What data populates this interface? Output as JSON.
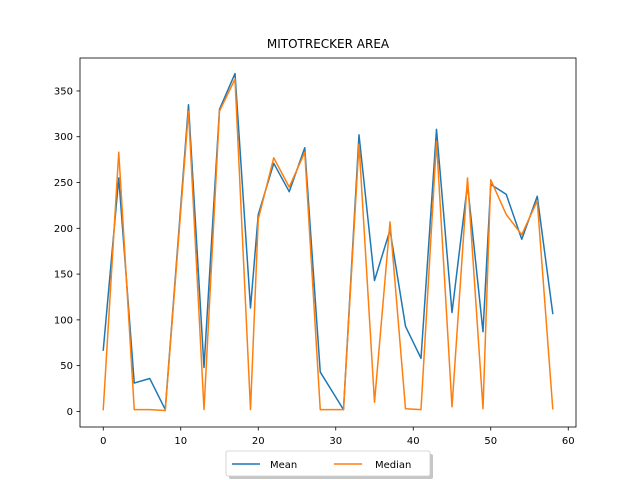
{
  "chart_data": {
    "type": "line",
    "title": "MITOTRECKER AREA",
    "xlabel": "",
    "ylabel": "",
    "xlim": [
      -3,
      61
    ],
    "ylim": [
      -17,
      386
    ],
    "xticks": [
      0,
      10,
      20,
      30,
      40,
      50,
      60
    ],
    "yticks": [
      0,
      50,
      100,
      150,
      200,
      250,
      300,
      350
    ],
    "grid": false,
    "legend_position": "bottom-center",
    "legend_columns": 2,
    "series": [
      {
        "name": "Mean",
        "color": "#1f77b4",
        "x": [
          0,
          2,
          4,
          6,
          8,
          11,
          13,
          15,
          17,
          19,
          20,
          22,
          24,
          26,
          28,
          31,
          33,
          35,
          37,
          39,
          41,
          43,
          45,
          47,
          49,
          50,
          52,
          54,
          56,
          58
        ],
        "y": [
          67,
          255,
          31,
          36,
          2,
          335,
          48,
          330,
          369,
          113,
          215,
          271,
          240,
          288,
          43,
          2,
          302,
          143,
          198,
          93,
          58,
          308,
          108,
          248,
          87,
          248,
          237,
          188,
          235,
          107
        ]
      },
      {
        "name": "Median",
        "color": "#ff7f0e",
        "x": [
          0,
          2,
          4,
          6,
          8,
          11,
          13,
          15,
          17,
          19,
          20,
          22,
          24,
          26,
          28,
          31,
          33,
          35,
          37,
          39,
          41,
          43,
          45,
          47,
          49,
          50,
          52,
          54,
          56,
          58
        ],
        "y": [
          2,
          283,
          2,
          2,
          1,
          328,
          2,
          328,
          363,
          2,
          210,
          277,
          245,
          283,
          2,
          2,
          292,
          10,
          207,
          3,
          2,
          295,
          5,
          255,
          3,
          253,
          215,
          193,
          230,
          3
        ]
      }
    ]
  }
}
